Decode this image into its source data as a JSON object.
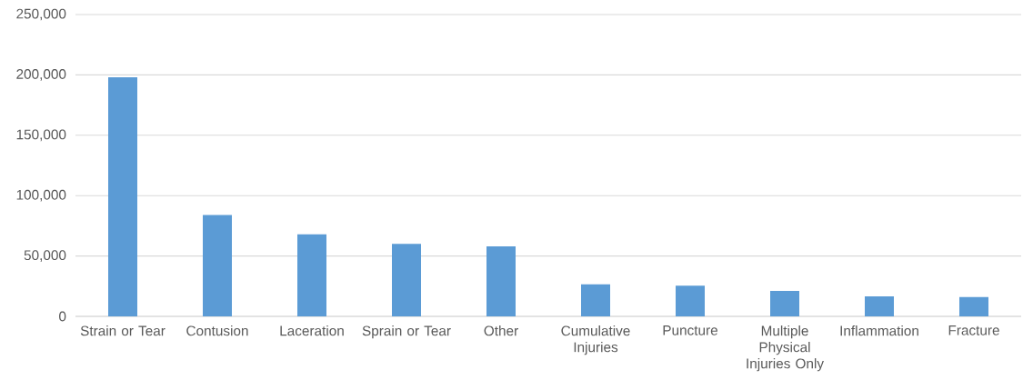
{
  "chart_data": {
    "type": "bar",
    "categories": [
      "Strain or Tear",
      "Contusion",
      "Laceration",
      "Sprain or Tear",
      "Other",
      "Cumulative Injuries",
      "Puncture",
      "Multiple Physical Injuries Only",
      "Inflammation",
      "Fracture"
    ],
    "values": [
      198000,
      84000,
      68000,
      60000,
      58000,
      26500,
      25500,
      21000,
      16500,
      16000
    ],
    "color": "#5b9bd5",
    "ylim": [
      0,
      250000
    ],
    "yticks": [
      {
        "value": 0,
        "label": "0"
      },
      {
        "value": 50000,
        "label": "50,000"
      },
      {
        "value": 100000,
        "label": "100,000"
      },
      {
        "value": 150000,
        "label": "150,000"
      },
      {
        "value": 200000,
        "label": "200,000"
      },
      {
        "value": 250000,
        "label": "250,000"
      }
    ],
    "grid": "y"
  }
}
